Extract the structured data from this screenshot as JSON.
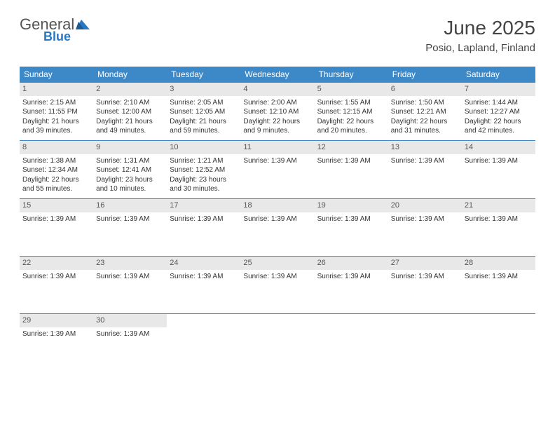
{
  "brand": {
    "word1": "General",
    "word2": "Blue"
  },
  "title": "June 2025",
  "location": "Posio, Lapland, Finland",
  "colors": {
    "brand_blue": "#2b78c2",
    "header_bg": "#3d88c7",
    "daynum_bg": "#e8e8e8",
    "rule": "#3d88c7",
    "text": "#333333"
  },
  "dow": [
    "Sunday",
    "Monday",
    "Tuesday",
    "Wednesday",
    "Thursday",
    "Friday",
    "Saturday"
  ],
  "weeks": [
    [
      {
        "n": "1",
        "lines": [
          "Sunrise: 2:15 AM",
          "Sunset: 11:55 PM",
          "Daylight: 21 hours",
          "and 39 minutes."
        ]
      },
      {
        "n": "2",
        "lines": [
          "Sunrise: 2:10 AM",
          "Sunset: 12:00 AM",
          "Daylight: 21 hours",
          "and 49 minutes."
        ]
      },
      {
        "n": "3",
        "lines": [
          "Sunrise: 2:05 AM",
          "Sunset: 12:05 AM",
          "Daylight: 21 hours",
          "and 59 minutes."
        ]
      },
      {
        "n": "4",
        "lines": [
          "Sunrise: 2:00 AM",
          "Sunset: 12:10 AM",
          "Daylight: 22 hours",
          "and 9 minutes."
        ]
      },
      {
        "n": "5",
        "lines": [
          "Sunrise: 1:55 AM",
          "Sunset: 12:15 AM",
          "Daylight: 22 hours",
          "and 20 minutes."
        ]
      },
      {
        "n": "6",
        "lines": [
          "Sunrise: 1:50 AM",
          "Sunset: 12:21 AM",
          "Daylight: 22 hours",
          "and 31 minutes."
        ]
      },
      {
        "n": "7",
        "lines": [
          "Sunrise: 1:44 AM",
          "Sunset: 12:27 AM",
          "Daylight: 22 hours",
          "and 42 minutes."
        ]
      }
    ],
    [
      {
        "n": "8",
        "lines": [
          "Sunrise: 1:38 AM",
          "Sunset: 12:34 AM",
          "Daylight: 22 hours",
          "and 55 minutes."
        ]
      },
      {
        "n": "9",
        "lines": [
          "Sunrise: 1:31 AM",
          "Sunset: 12:41 AM",
          "Daylight: 23 hours",
          "and 10 minutes."
        ]
      },
      {
        "n": "10",
        "lines": [
          "Sunrise: 1:21 AM",
          "Sunset: 12:52 AM",
          "Daylight: 23 hours",
          "and 30 minutes."
        ]
      },
      {
        "n": "11",
        "lines": [
          "Sunrise: 1:39 AM"
        ]
      },
      {
        "n": "12",
        "lines": [
          "Sunrise: 1:39 AM"
        ]
      },
      {
        "n": "13",
        "lines": [
          "Sunrise: 1:39 AM"
        ]
      },
      {
        "n": "14",
        "lines": [
          "Sunrise: 1:39 AM"
        ]
      }
    ],
    [
      {
        "n": "15",
        "lines": [
          "Sunrise: 1:39 AM"
        ]
      },
      {
        "n": "16",
        "lines": [
          "Sunrise: 1:39 AM"
        ]
      },
      {
        "n": "17",
        "lines": [
          "Sunrise: 1:39 AM"
        ]
      },
      {
        "n": "18",
        "lines": [
          "Sunrise: 1:39 AM"
        ]
      },
      {
        "n": "19",
        "lines": [
          "Sunrise: 1:39 AM"
        ]
      },
      {
        "n": "20",
        "lines": [
          "Sunrise: 1:39 AM"
        ]
      },
      {
        "n": "21",
        "lines": [
          "Sunrise: 1:39 AM"
        ]
      }
    ],
    [
      {
        "n": "22",
        "lines": [
          "Sunrise: 1:39 AM"
        ]
      },
      {
        "n": "23",
        "lines": [
          "Sunrise: 1:39 AM"
        ]
      },
      {
        "n": "24",
        "lines": [
          "Sunrise: 1:39 AM"
        ]
      },
      {
        "n": "25",
        "lines": [
          "Sunrise: 1:39 AM"
        ]
      },
      {
        "n": "26",
        "lines": [
          "Sunrise: 1:39 AM"
        ]
      },
      {
        "n": "27",
        "lines": [
          "Sunrise: 1:39 AM"
        ]
      },
      {
        "n": "28",
        "lines": [
          "Sunrise: 1:39 AM"
        ]
      }
    ],
    [
      {
        "n": "29",
        "lines": [
          "Sunrise: 1:39 AM"
        ]
      },
      {
        "n": "30",
        "lines": [
          "Sunrise: 1:39 AM"
        ]
      },
      {
        "n": "",
        "lines": []
      },
      {
        "n": "",
        "lines": []
      },
      {
        "n": "",
        "lines": []
      },
      {
        "n": "",
        "lines": []
      },
      {
        "n": "",
        "lines": []
      }
    ]
  ]
}
